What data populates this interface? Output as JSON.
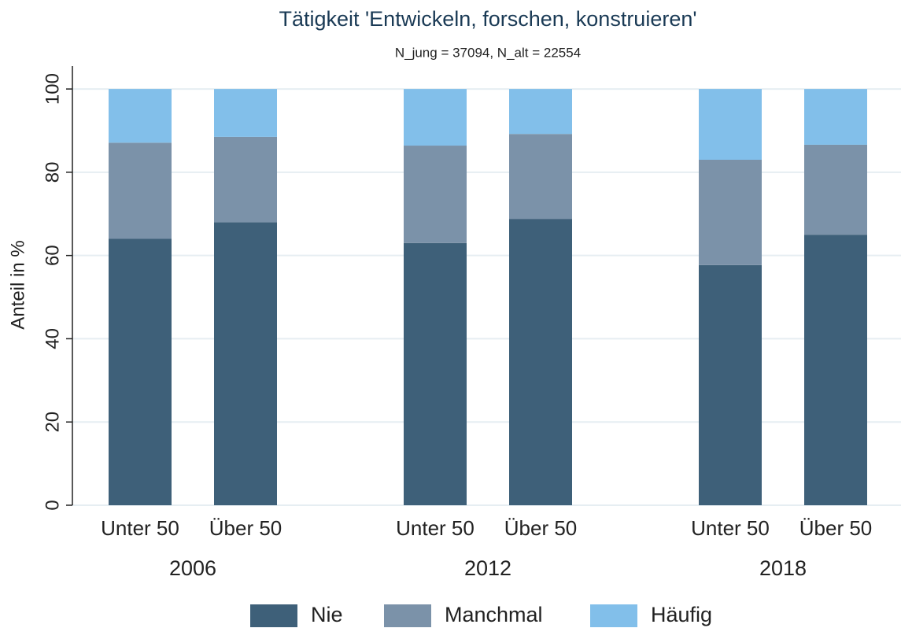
{
  "chart_data": {
    "type": "stacked_bar",
    "title": "Tätigkeit  'Entwickeln, forschen, konstruieren'",
    "subtitle": "N_jung = 37094, N_alt = 22554",
    "y_label": "Anteil in %",
    "groups": [
      "2006",
      "2012",
      "2018"
    ],
    "categories": [
      "Unter 50",
      "Über 50",
      "Unter 50",
      "Über 50",
      "Unter 50",
      "Über 50"
    ],
    "series": [
      {
        "name": "Nie",
        "color": "#3e6079",
        "values": [
          64,
          68,
          63,
          68.8,
          57.7,
          65
        ]
      },
      {
        "name": "Manchmal",
        "color": "#7b92a9",
        "values": [
          23.1,
          20.5,
          23.4,
          20.4,
          25.3,
          21.6
        ]
      },
      {
        "name": "Häufig",
        "color": "#82bfea",
        "values": [
          12.9,
          11.5,
          13.6,
          10.8,
          17,
          13.4
        ]
      }
    ],
    "ylim": [
      0,
      105.5
    ],
    "yticks": [
      0,
      20,
      40,
      60,
      80,
      100
    ],
    "grid": true,
    "legend": "bottom"
  }
}
